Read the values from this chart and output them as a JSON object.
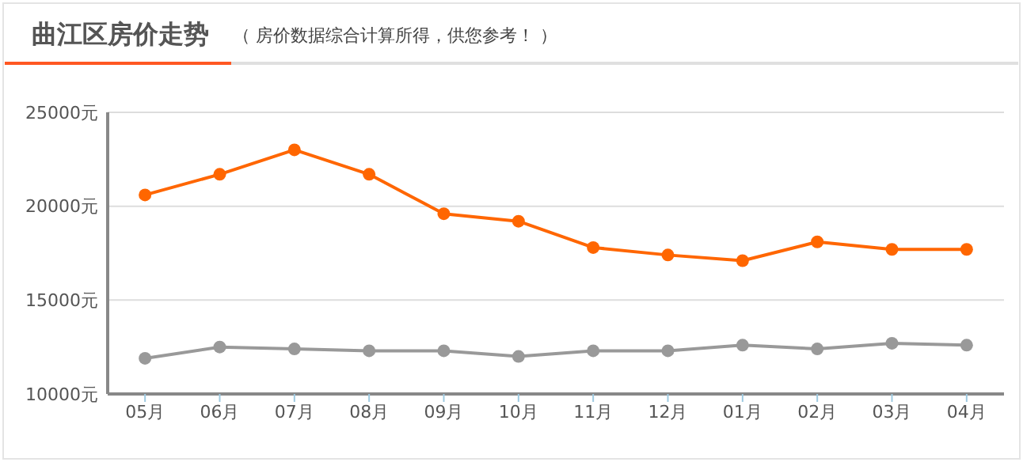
{
  "chart_data": {
    "type": "line",
    "title": "曲江区房价走势",
    "subtitle": "（ 房价数据综合计算所得，供您参考！ ）",
    "categories": [
      "05月",
      "06月",
      "07月",
      "08月",
      "09月",
      "10月",
      "11月",
      "12月",
      "01月",
      "02月",
      "03月",
      "04月"
    ],
    "series": [
      {
        "color": "#ff6600",
        "values": [
          20600,
          21700,
          23000,
          21700,
          19600,
          19200,
          17800,
          17400,
          17100,
          18100,
          17700,
          17700
        ]
      },
      {
        "color": "#999999",
        "values": [
          11900,
          12500,
          12400,
          12300,
          12300,
          12000,
          12300,
          12300,
          12600,
          12400,
          12700,
          12600
        ]
      }
    ],
    "ylim": [
      10000,
      25000
    ],
    "yticks": [
      {
        "value": 10000,
        "label": "10000元"
      },
      {
        "value": 15000,
        "label": "15000元"
      },
      {
        "value": 20000,
        "label": "20000元"
      },
      {
        "value": 25000,
        "label": "25000元"
      }
    ],
    "grid": "y",
    "marker": "circle",
    "line_style": "solid"
  }
}
